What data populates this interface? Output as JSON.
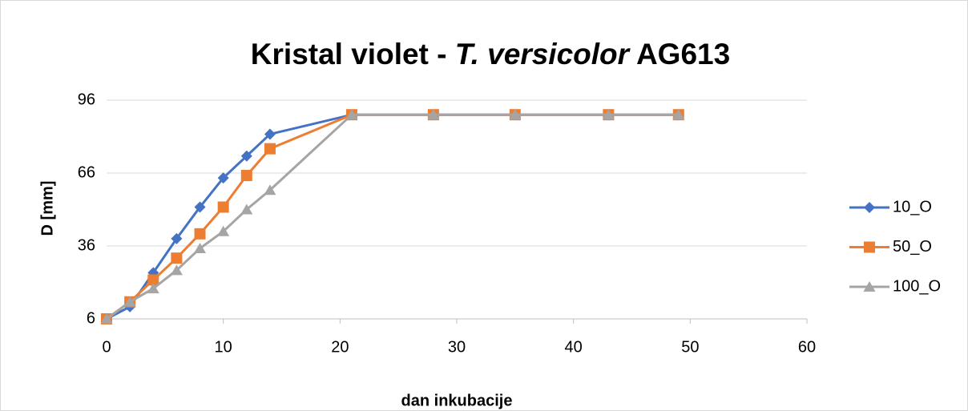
{
  "chart_data": {
    "type": "line",
    "title": "Kristal violet - T. versicolor AG613",
    "title_italic": "T. versicolor",
    "x_label": "dan inkubacije",
    "y_label": "D [mm]",
    "x": [
      0,
      2,
      4,
      6,
      8,
      10,
      12,
      14,
      21,
      28,
      35,
      43,
      49
    ],
    "series": [
      {
        "name": "10_O",
        "color": "#4472c4",
        "marker": "diamond",
        "values": [
          6,
          11,
          25,
          39,
          52,
          64,
          73,
          82,
          90,
          90,
          90,
          90,
          90
        ]
      },
      {
        "name": "50_O",
        "color": "#ed7d31",
        "marker": "square",
        "values": [
          6,
          13,
          22,
          31,
          41,
          52,
          65,
          76,
          90,
          90,
          90,
          90,
          90
        ]
      },
      {
        "name": "100_O",
        "color": "#a5a5a5",
        "marker": "triangle",
        "values": [
          6,
          13,
          18.5,
          26,
          35,
          42,
          51,
          59,
          90,
          90,
          90,
          90,
          90
        ]
      }
    ],
    "xlim": [
      0,
      60
    ],
    "xticks": [
      0,
      10,
      20,
      30,
      40,
      50,
      60
    ],
    "ylim": [
      6,
      96
    ],
    "yticks": [
      6,
      36,
      66,
      96
    ],
    "grid": true,
    "legend": "right"
  }
}
